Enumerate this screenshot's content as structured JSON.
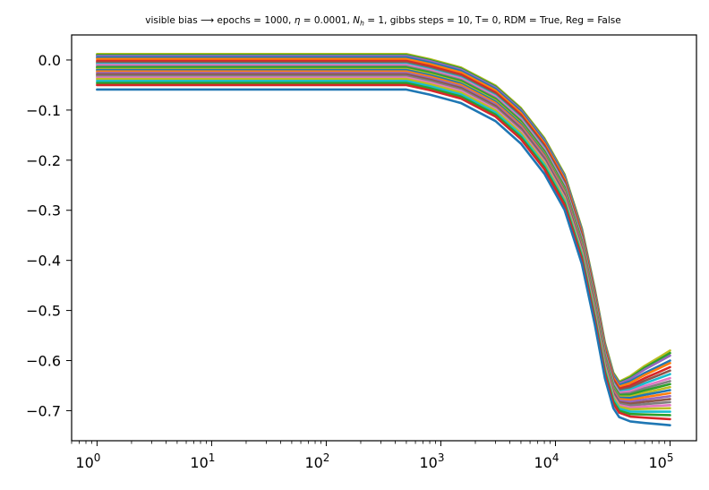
{
  "chart_data": {
    "type": "line",
    "title": "visible bias ⟶ epochs = 1000, η = 0.0001, N_h = 1, gibbs steps = 10, T= 0, RDM = True, Reg = False",
    "title_parts": {
      "prefix": "visible bias ⟶ epochs = 1000, ",
      "eta": "η",
      "mid1": " = 0.0001, ",
      "n": "N",
      "n_sub": "h",
      "rest": " = 1, gibbs steps = 10, T= 0, RDM = True, Reg = False"
    },
    "xlabel": "",
    "ylabel": "",
    "xscale": "log",
    "xlim": [
      0.6,
      170000
    ],
    "ylim": [
      -0.76,
      0.05
    ],
    "x_ticks": [
      {
        "base": "10",
        "exp": "0"
      },
      {
        "base": "10",
        "exp": "1"
      },
      {
        "base": "10",
        "exp": "2"
      },
      {
        "base": "10",
        "exp": "3"
      },
      {
        "base": "10",
        "exp": "4"
      },
      {
        "base": "10",
        "exp": "5"
      }
    ],
    "y_ticks": [
      "0.0",
      "−0.1",
      "−0.2",
      "−0.3",
      "−0.4",
      "−0.5",
      "−0.6",
      "−0.7"
    ],
    "grid": false,
    "legend": "none",
    "curve_x": [
      1,
      100,
      500,
      800,
      1500,
      3000,
      5000,
      8000,
      12000,
      17000,
      22000,
      27000,
      32000,
      36000,
      45000,
      60000,
      80000,
      100000
    ],
    "curve_shape": {
      "drop": [
        0,
        0,
        0,
        0.017,
        0.045,
        0.105,
        0.18,
        0.28,
        0.4,
        0.58,
        0.78,
        0.96,
        1.06,
        1.09,
        1.1,
        1.1,
        1.1,
        1.1
      ],
      "tail": [
        0,
        0,
        0,
        0,
        0,
        0,
        0,
        0,
        0,
        0,
        0,
        0,
        0,
        0,
        0.25,
        0.55,
        0.8,
        1.0
      ]
    },
    "series": [
      {
        "start": 0.012,
        "end": -0.575,
        "color": "#bcbd22"
      },
      {
        "start": 0.01,
        "end": -0.58,
        "color": "#2ca02c"
      },
      {
        "start": 0.008,
        "end": -0.585,
        "color": "#9467bd"
      },
      {
        "start": 0.005,
        "end": -0.595,
        "color": "#1f77b4"
      },
      {
        "start": 0.002,
        "end": -0.6,
        "color": "#ff7f0e"
      },
      {
        "start": -0.002,
        "end": -0.608,
        "color": "#d62728"
      },
      {
        "start": -0.005,
        "end": -0.615,
        "color": "#8c564b"
      },
      {
        "start": -0.008,
        "end": -0.622,
        "color": "#17becf"
      },
      {
        "start": -0.01,
        "end": -0.63,
        "color": "#e377c2"
      },
      {
        "start": -0.013,
        "end": -0.636,
        "color": "#7f7f7f"
      },
      {
        "start": -0.015,
        "end": -0.642,
        "color": "#2ca02c"
      },
      {
        "start": -0.018,
        "end": -0.648,
        "color": "#bcbd22"
      },
      {
        "start": -0.02,
        "end": -0.654,
        "color": "#1f77b4"
      },
      {
        "start": -0.023,
        "end": -0.66,
        "color": "#ff7f0e"
      },
      {
        "start": -0.026,
        "end": -0.666,
        "color": "#9467bd"
      },
      {
        "start": -0.029,
        "end": -0.672,
        "color": "#8c564b"
      },
      {
        "start": -0.032,
        "end": -0.678,
        "color": "#7f7f7f"
      },
      {
        "start": -0.035,
        "end": -0.684,
        "color": "#e377c2"
      },
      {
        "start": -0.038,
        "end": -0.69,
        "color": "#bcbd22"
      },
      {
        "start": -0.042,
        "end": -0.697,
        "color": "#17becf"
      },
      {
        "start": -0.046,
        "end": -0.704,
        "color": "#2ca02c"
      },
      {
        "start": -0.05,
        "end": -0.712,
        "color": "#d62728"
      },
      {
        "start": -0.059,
        "end": -0.724,
        "color": "#1f77b4"
      }
    ]
  }
}
